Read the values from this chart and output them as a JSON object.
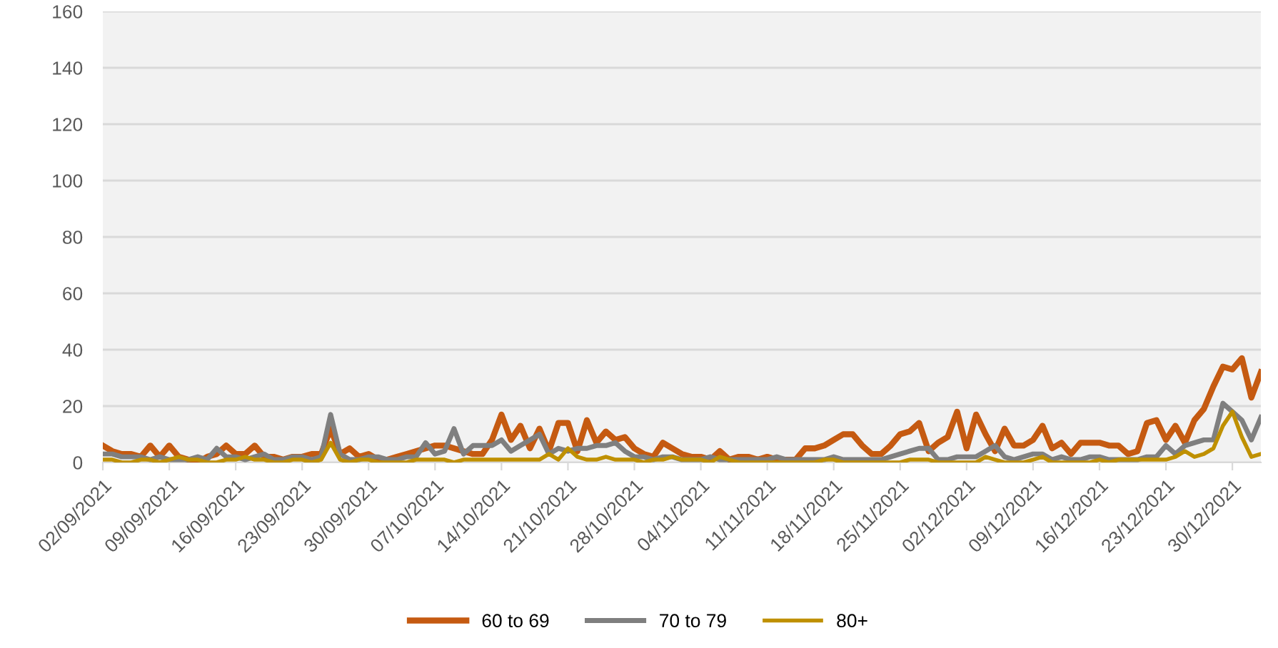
{
  "chart_data": {
    "type": "line",
    "categories": [
      "02/09/2021",
      null,
      null,
      null,
      null,
      null,
      null,
      "09/09/2021",
      null,
      null,
      null,
      null,
      null,
      null,
      "16/09/2021",
      null,
      null,
      null,
      null,
      null,
      null,
      "23/09/2021",
      null,
      null,
      null,
      null,
      null,
      null,
      "30/09/2021",
      null,
      null,
      null,
      null,
      null,
      null,
      "07/10/2021",
      null,
      null,
      null,
      null,
      null,
      null,
      "14/10/2021",
      null,
      null,
      null,
      null,
      null,
      null,
      "21/10/2021",
      null,
      null,
      null,
      null,
      null,
      null,
      "28/10/2021",
      null,
      null,
      null,
      null,
      null,
      null,
      "04/11/2021",
      null,
      null,
      null,
      null,
      null,
      null,
      "11/11/2021",
      null,
      null,
      null,
      null,
      null,
      null,
      "18/11/2021",
      null,
      null,
      null,
      null,
      null,
      null,
      "25/11/2021",
      null,
      null,
      null,
      null,
      null,
      null,
      "02/12/2021",
      null,
      null,
      null,
      null,
      null,
      null,
      "09/12/2021",
      null,
      null,
      null,
      null,
      null,
      null,
      "16/12/2021",
      null,
      null,
      null,
      null,
      null,
      null,
      "23/12/2021",
      null,
      null,
      null,
      null,
      null,
      null,
      "30/12/2021",
      null,
      null,
      null
    ],
    "series": [
      {
        "name": "60 to 69",
        "color": "#c55a11",
        "values": [
          6,
          4,
          3,
          3,
          2,
          6,
          2,
          6,
          2,
          1,
          0,
          2,
          3,
          6,
          3,
          3,
          6,
          2,
          2,
          1,
          2,
          2,
          3,
          3,
          12,
          3,
          5,
          2,
          3,
          1,
          1,
          2,
          3,
          4,
          5,
          6,
          6,
          5,
          4,
          3,
          3,
          8,
          17,
          8,
          13,
          5,
          12,
          4,
          14,
          14,
          4,
          15,
          7,
          11,
          8,
          9,
          5,
          3,
          2,
          7,
          5,
          3,
          2,
          2,
          1,
          4,
          1,
          2,
          2,
          1,
          2,
          1,
          1,
          1,
          5,
          5,
          6,
          8,
          10,
          10,
          6,
          3,
          3,
          6,
          10,
          11,
          14,
          4,
          7,
          9,
          18,
          5,
          17,
          10,
          4,
          12,
          6,
          6,
          8,
          13,
          5,
          7,
          3,
          7,
          7,
          7,
          6,
          6,
          3,
          4,
          14,
          15,
          8,
          13,
          7,
          15,
          19,
          27,
          34,
          33,
          37,
          23,
          32
        ]
      },
      {
        "name": "70 to 79",
        "color": "#7f7f7f",
        "values": [
          3,
          3,
          2,
          2,
          2,
          1,
          2,
          1,
          1,
          1,
          2,
          1,
          5,
          2,
          2,
          1,
          2,
          3,
          1,
          1,
          2,
          2,
          1,
          2,
          17,
          3,
          1,
          1,
          2,
          2,
          1,
          1,
          2,
          2,
          7,
          3,
          4,
          12,
          3,
          6,
          6,
          6,
          8,
          4,
          6,
          8,
          10,
          3,
          5,
          4,
          5,
          5,
          6,
          6,
          7,
          4,
          2,
          2,
          1,
          2,
          2,
          1,
          1,
          1,
          2,
          1,
          1,
          1,
          1,
          1,
          1,
          2,
          1,
          1,
          1,
          1,
          1,
          2,
          1,
          1,
          1,
          1,
          1,
          2,
          3,
          4,
          5,
          5,
          1,
          1,
          2,
          2,
          2,
          4,
          6,
          2,
          1,
          2,
          3,
          3,
          1,
          2,
          1,
          1,
          2,
          2,
          1,
          1,
          1,
          1,
          2,
          2,
          6,
          3,
          6,
          7,
          8,
          8,
          21,
          18,
          15,
          8,
          16
        ]
      },
      {
        "name": "80+",
        "color": "#bf9000",
        "values": [
          1,
          1,
          0,
          0,
          1,
          1,
          0,
          1,
          2,
          1,
          1,
          0,
          0,
          1,
          1,
          2,
          1,
          1,
          0,
          0,
          1,
          1,
          0,
          1,
          7,
          1,
          0,
          1,
          1,
          0,
          0,
          0,
          0,
          1,
          1,
          1,
          1,
          0,
          1,
          1,
          1,
          1,
          1,
          1,
          1,
          1,
          1,
          3,
          1,
          5,
          2,
          1,
          1,
          2,
          1,
          1,
          1,
          0,
          1,
          1,
          2,
          1,
          1,
          1,
          0,
          2,
          1,
          0,
          0,
          0,
          0,
          0,
          0,
          0,
          0,
          0,
          1,
          1,
          0,
          0,
          0,
          0,
          0,
          0,
          0,
          1,
          1,
          1,
          0,
          0,
          0,
          0,
          0,
          2,
          1,
          0,
          0,
          0,
          1,
          2,
          0,
          0,
          0,
          0,
          0,
          1,
          0,
          1,
          1,
          1,
          1,
          1,
          1,
          2,
          4,
          2,
          3,
          5,
          13,
          18,
          9,
          2,
          3
        ]
      }
    ],
    "ylim": [
      0,
      160
    ],
    "yticks": [
      0,
      20,
      40,
      60,
      80,
      100,
      120,
      140,
      160
    ],
    "grid": "y",
    "legend": "bottom",
    "marker": "none",
    "line_style": "solid"
  }
}
